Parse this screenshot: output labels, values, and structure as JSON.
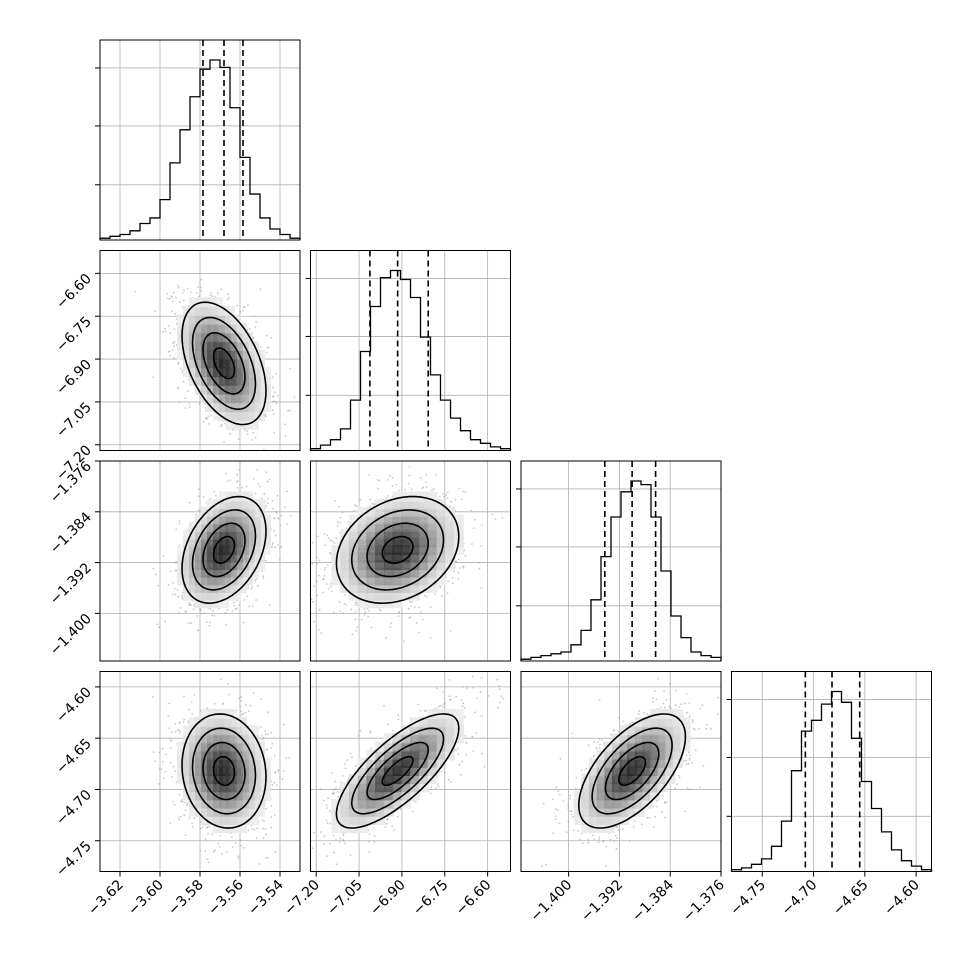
{
  "chart_data": {
    "type": "corner",
    "parameters": [
      {
        "range": [
          -3.63,
          -3.53
        ],
        "ticks": [
          "-3.62",
          "-3.60",
          "-3.58",
          "-3.56",
          "-3.54"
        ],
        "tick_values": [
          -3.62,
          -3.6,
          -3.58,
          -3.56,
          -3.54
        ],
        "quantiles": [
          -3.5785,
          -3.568,
          -3.5585
        ]
      },
      {
        "range": [
          -7.22,
          -6.52
        ],
        "ticks": [
          "-7.20",
          "-7.05",
          "-6.90",
          "-6.75",
          "-6.60"
        ],
        "tick_values": [
          -7.2,
          -7.05,
          -6.9,
          -6.75,
          -6.6
        ],
        "quantiles": [
          -7.012,
          -6.915,
          -6.808
        ]
      },
      {
        "range": [
          -1.4075,
          -1.376
        ],
        "ticks": [
          "-1.400",
          "-1.392",
          "-1.384",
          "-1.376"
        ],
        "tick_values": [
          -1.4,
          -1.392,
          -1.384,
          -1.376
        ],
        "quantiles": [
          -1.3943,
          -1.39,
          -1.3863
        ]
      },
      {
        "range": [
          -4.78,
          -4.585
        ],
        "ticks": [
          "-4.75",
          "-4.70",
          "-4.65",
          "-4.60"
        ],
        "tick_values": [
          -4.75,
          -4.7,
          -4.65,
          -4.6
        ],
        "quantiles": [
          -4.708,
          -4.682,
          -4.655
        ]
      }
    ],
    "histograms": [
      [
        1,
        2,
        3,
        5,
        9,
        12,
        22,
        42,
        60,
        78,
        93,
        98,
        94,
        72,
        45,
        25,
        12,
        6,
        3,
        1
      ],
      [
        1,
        3,
        6,
        12,
        28,
        55,
        80,
        96,
        100,
        95,
        85,
        63,
        42,
        28,
        18,
        11,
        6,
        4,
        2,
        1
      ],
      [
        1,
        2,
        3,
        4,
        5,
        9,
        17,
        34,
        58,
        80,
        94,
        100,
        98,
        80,
        50,
        25,
        13,
        5,
        3,
        2
      ],
      [
        1,
        2,
        4,
        7,
        14,
        28,
        56,
        78,
        84,
        93,
        100,
        94,
        74,
        50,
        35,
        22,
        12,
        6,
        3,
        1
      ]
    ],
    "correlations": [
      {
        "row": 1,
        "col": 0,
        "rho": -0.45
      },
      {
        "row": 2,
        "col": 0,
        "rho": 0.35
      },
      {
        "row": 2,
        "col": 1,
        "rho": 0.25
      },
      {
        "row": 3,
        "col": 0,
        "rho": -0.1
      },
      {
        "row": 3,
        "col": 1,
        "rho": 0.75
      },
      {
        "row": 3,
        "col": 2,
        "rho": 0.6
      }
    ],
    "grid": true
  }
}
